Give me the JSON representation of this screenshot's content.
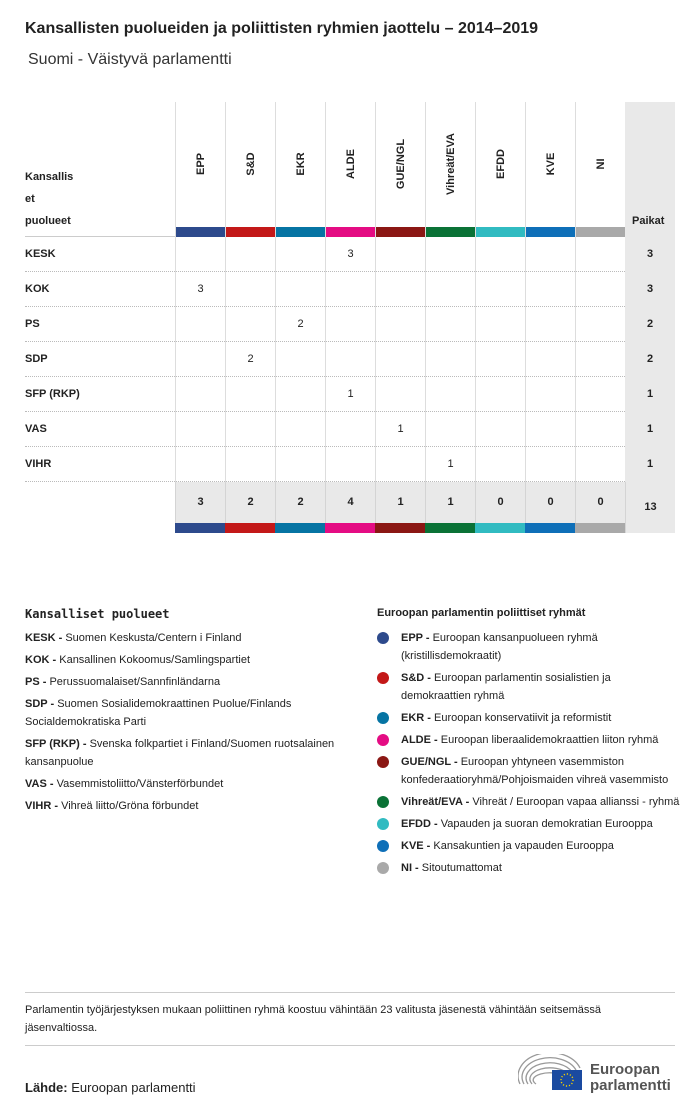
{
  "title": "Kansallisten puolueiden ja poliittisten ryhmien jaottelu – 2014–2019",
  "subtitle": "Suomi - Väistyvä parlamentti",
  "table": {
    "row_header": "Kansallis et puolueet",
    "seats_header": "Paikat",
    "groups": [
      {
        "name": "EPP",
        "color": "#2d4a8c"
      },
      {
        "name": "S&D",
        "color": "#c31818"
      },
      {
        "name": "EKR",
        "color": "#0674a3"
      },
      {
        "name": "ALDE",
        "color": "#e40c83"
      },
      {
        "name": "GUE/NGL",
        "color": "#8b1714"
      },
      {
        "name": "Vihreät/EVA",
        "color": "#0a7236"
      },
      {
        "name": "EFDD",
        "color": "#31bbc1"
      },
      {
        "name": "KVE",
        "color": "#0e6fb8"
      },
      {
        "name": "NI",
        "color": "#a9a9a9"
      }
    ],
    "rows": [
      {
        "party": "KESK",
        "values": [
          "",
          "",
          "",
          "3",
          "",
          "",
          "",
          "",
          ""
        ],
        "total": "3"
      },
      {
        "party": "KOK",
        "values": [
          "3",
          "",
          "",
          "",
          "",
          "",
          "",
          "",
          ""
        ],
        "total": "3"
      },
      {
        "party": "PS",
        "values": [
          "",
          "",
          "2",
          "",
          "",
          "",
          "",
          "",
          ""
        ],
        "total": "2"
      },
      {
        "party": "SDP",
        "values": [
          "",
          "2",
          "",
          "",
          "",
          "",
          "",
          "",
          ""
        ],
        "total": "2"
      },
      {
        "party": "SFP (RKP)",
        "values": [
          "",
          "",
          "",
          "1",
          "",
          "",
          "",
          "",
          ""
        ],
        "total": "1"
      },
      {
        "party": "VAS",
        "values": [
          "",
          "",
          "",
          "",
          "1",
          "",
          "",
          "",
          ""
        ],
        "total": "1"
      },
      {
        "party": "VIHR",
        "values": [
          "",
          "",
          "",
          "",
          "",
          "1",
          "",
          "",
          ""
        ],
        "total": "1"
      }
    ],
    "totals": [
      "3",
      "2",
      "2",
      "4",
      "1",
      "1",
      "0",
      "0",
      "0"
    ],
    "grand_total": "13"
  },
  "legend_parties": {
    "title": "Kansalliset puolueet",
    "items": [
      {
        "abbr": "KESK -",
        "name": "Suomen Keskusta/Centern i Finland"
      },
      {
        "abbr": "KOK -",
        "name": "Kansallinen Kokoomus/Samlingspartiet"
      },
      {
        "abbr": "PS -",
        "name": "Perussuomalaiset/Sannfinländarna"
      },
      {
        "abbr": "SDP -",
        "name": "Suomen Sosialidemokraattinen Puolue/Finlands Socialdemokratiska Parti"
      },
      {
        "abbr": "SFP (RKP) -",
        "name": "Svenska folkpartiet i Finland/Suomen ruotsalainen kansanpuolue"
      },
      {
        "abbr": "VAS -",
        "name": "Vasemmistoliitto/Vänsterförbundet"
      },
      {
        "abbr": "VIHR -",
        "name": "Vihreä liitto/Gröna förbundet"
      }
    ]
  },
  "legend_groups": {
    "title": "Euroopan parlamentin poliittiset ryhmät",
    "items": [
      {
        "abbr": "EPP -",
        "name": "Euroopan kansanpuolueen ryhmä (kristillisdemokraatit)",
        "color": "#2d4a8c"
      },
      {
        "abbr": "S&D -",
        "name": "Euroopan parlamentin sosialistien ja demokraattien ryhmä",
        "color": "#c31818"
      },
      {
        "abbr": "EKR -",
        "name": "Euroopan konservatiivit ja reformistit",
        "color": "#0674a3"
      },
      {
        "abbr": "ALDE -",
        "name": "Euroopan liberaalidemokraattien liiton ryhmä",
        "color": "#e40c83"
      },
      {
        "abbr": "GUE/NGL -",
        "name": "Euroopan yhtyneen vasemmiston konfederaatioryhmä/Pohjoismaiden vihreä vasemmisto",
        "color": "#8b1714"
      },
      {
        "abbr": "Vihreät/EVA -",
        "name": "Vihreät / Euroopan vapaa allianssi - ryhmä",
        "color": "#0a7236"
      },
      {
        "abbr": "EFDD -",
        "name": "Vapauden ja suoran demokratian Eurooppa",
        "color": "#31bbc1"
      },
      {
        "abbr": "KVE -",
        "name": "Kansakuntien ja vapauden Eurooppa",
        "color": "#0e6fb8"
      },
      {
        "abbr": "NI -",
        "name": "Sitoutumattomat",
        "color": "#a9a9a9"
      }
    ]
  },
  "note": "Parlamentin työjärjestyksen mukaan poliittinen ryhmä koostuu vähintään 23 valitusta jäsenestä vähintään seitsemässä jäsenvaltiossa.",
  "source_label": "Lähde:",
  "source": "Euroopan parlamentti",
  "logo_text": "Euroopan parlamentti"
}
